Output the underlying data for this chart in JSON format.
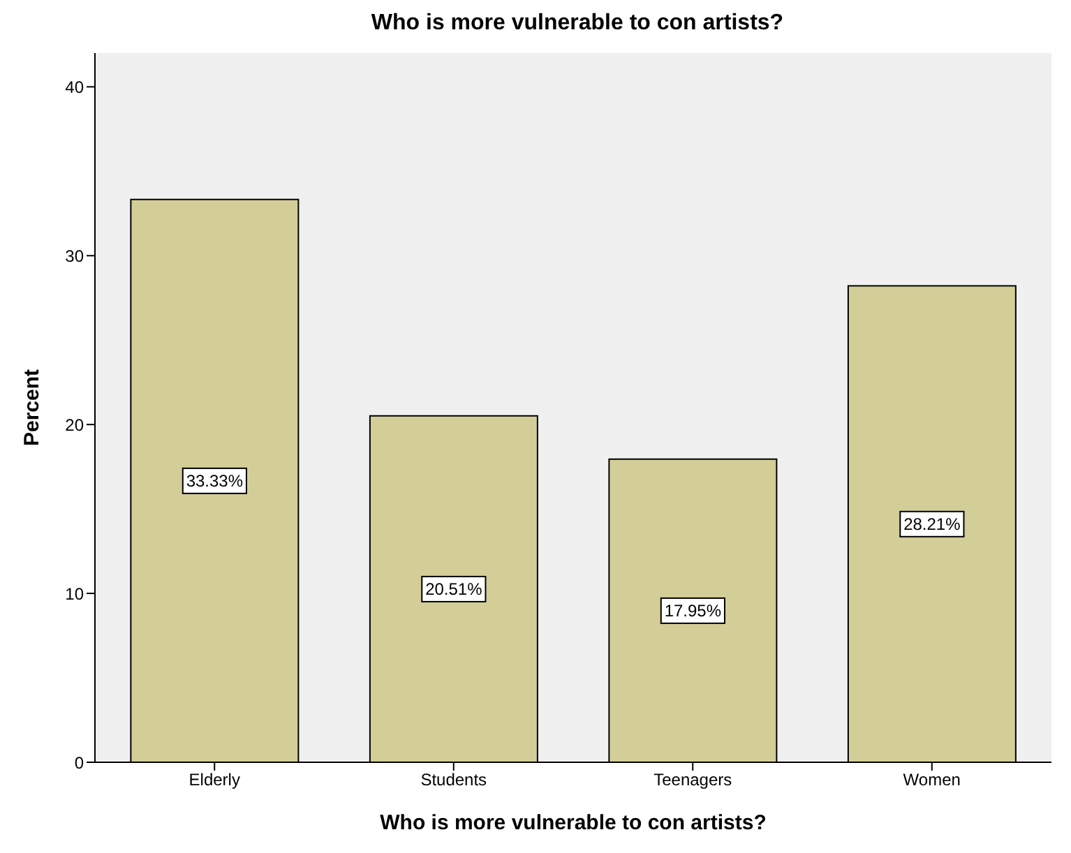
{
  "chart_data": {
    "type": "bar",
    "title": "Who is more vulnerable to con artists?",
    "xlabel": "Who is more vulnerable to con artists?",
    "ylabel": "Percent",
    "categories": [
      "Elderly",
      "Students",
      "Teenagers",
      "Women"
    ],
    "values": [
      33.33,
      20.51,
      17.95,
      28.21
    ],
    "value_labels": [
      "33.33%",
      "20.51%",
      "17.95%",
      "28.21%"
    ],
    "color": "#d3ce98",
    "ylim": [
      0,
      42
    ],
    "yticks": [
      0,
      10,
      20,
      30,
      40
    ],
    "grid": false,
    "legend": false
  }
}
